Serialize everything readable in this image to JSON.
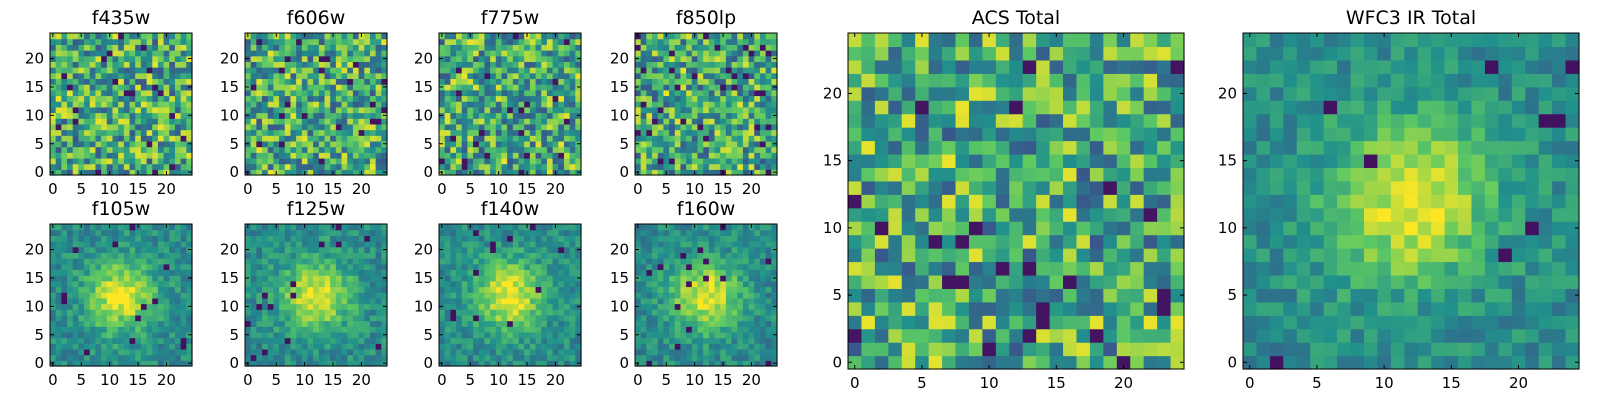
{
  "figure": {
    "colormap": [
      "#440154",
      "#3b528b",
      "#21918c",
      "#5ec962",
      "#fde725"
    ],
    "background": "#ffffff"
  },
  "chart_data": [
    {
      "type": "heatmap",
      "title": "f435w",
      "grid_size": 25,
      "xlim": [
        0,
        24
      ],
      "ylim": [
        0,
        24
      ],
      "xticks": [
        0,
        5,
        10,
        15,
        20
      ],
      "yticks": [
        0,
        5,
        10,
        15,
        20
      ],
      "texture": "noise",
      "gaussian_peak": null
    },
    {
      "type": "heatmap",
      "title": "f606w",
      "grid_size": 25,
      "xlim": [
        0,
        24
      ],
      "ylim": [
        0,
        24
      ],
      "xticks": [
        0,
        5,
        10,
        15,
        20
      ],
      "yticks": [
        0,
        5,
        10,
        15,
        20
      ],
      "texture": "noise",
      "gaussian_peak": null
    },
    {
      "type": "heatmap",
      "title": "f775w",
      "grid_size": 25,
      "xlim": [
        0,
        24
      ],
      "ylim": [
        0,
        24
      ],
      "xticks": [
        0,
        5,
        10,
        15,
        20
      ],
      "yticks": [
        0,
        5,
        10,
        15,
        20
      ],
      "texture": "noise",
      "gaussian_peak": null
    },
    {
      "type": "heatmap",
      "title": "f850lp",
      "grid_size": 25,
      "xlim": [
        0,
        24
      ],
      "ylim": [
        0,
        24
      ],
      "xticks": [
        0,
        5,
        10,
        15,
        20
      ],
      "yticks": [
        0,
        5,
        10,
        15,
        20
      ],
      "texture": "noise",
      "gaussian_peak": null
    },
    {
      "type": "heatmap",
      "title": "f105w",
      "grid_size": 25,
      "xlim": [
        0,
        24
      ],
      "ylim": [
        0,
        24
      ],
      "xticks": [
        0,
        5,
        10,
        15,
        20
      ],
      "yticks": [
        0,
        5,
        10,
        15,
        20
      ],
      "texture": "blob",
      "gaussian_peak": [
        12,
        12
      ]
    },
    {
      "type": "heatmap",
      "title": "f125w",
      "grid_size": 25,
      "xlim": [
        0,
        24
      ],
      "ylim": [
        0,
        24
      ],
      "xticks": [
        0,
        5,
        10,
        15,
        20
      ],
      "yticks": [
        0,
        5,
        10,
        15,
        20
      ],
      "texture": "blob",
      "gaussian_peak": [
        12,
        12
      ]
    },
    {
      "type": "heatmap",
      "title": "f140w",
      "grid_size": 25,
      "xlim": [
        0,
        24
      ],
      "ylim": [
        0,
        24
      ],
      "xticks": [
        0,
        5,
        10,
        15,
        20
      ],
      "yticks": [
        0,
        5,
        10,
        15,
        20
      ],
      "texture": "blob",
      "gaussian_peak": [
        12,
        12
      ]
    },
    {
      "type": "heatmap",
      "title": "f160w",
      "grid_size": 25,
      "xlim": [
        0,
        24
      ],
      "ylim": [
        0,
        24
      ],
      "xticks": [
        0,
        5,
        10,
        15,
        20
      ],
      "yticks": [
        0,
        5,
        10,
        15,
        20
      ],
      "texture": "blob",
      "gaussian_peak": [
        12,
        12
      ]
    },
    {
      "type": "heatmap",
      "title": "ACS Total",
      "grid_size": 25,
      "xlim": [
        0,
        24
      ],
      "ylim": [
        0,
        24
      ],
      "xticks": [
        0,
        5,
        10,
        15,
        20
      ],
      "yticks": [
        0,
        5,
        10,
        15,
        20
      ],
      "texture": "noise",
      "gaussian_peak": null
    },
    {
      "type": "heatmap",
      "title": "WFC3 IR Total",
      "grid_size": 25,
      "xlim": [
        0,
        24
      ],
      "ylim": [
        0,
        24
      ],
      "xticks": [
        0,
        5,
        10,
        15,
        20
      ],
      "yticks": [
        0,
        5,
        10,
        15,
        20
      ],
      "texture": "blob",
      "gaussian_peak": [
        12,
        12
      ]
    }
  ]
}
